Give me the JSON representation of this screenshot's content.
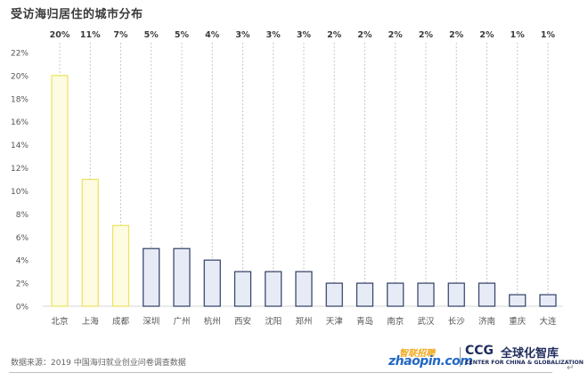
{
  "chart_data": {
    "type": "bar",
    "title": "受访海归居住的城市分布",
    "categories": [
      "北京",
      "上海",
      "成都",
      "深圳",
      "广州",
      "杭州",
      "西安",
      "沈阳",
      "郑州",
      "天津",
      "青岛",
      "南京",
      "武汉",
      "长沙",
      "济南",
      "重庆",
      "大连"
    ],
    "values": [
      20,
      11,
      7,
      5,
      5,
      4,
      3,
      3,
      3,
      2,
      2,
      2,
      2,
      2,
      2,
      1,
      1
    ],
    "value_labels": [
      "20%",
      "11%",
      "7%",
      "5%",
      "5%",
      "4%",
      "3%",
      "3%",
      "3%",
      "2%",
      "2%",
      "2%",
      "2%",
      "2%",
      "2%",
      "1%",
      "1%"
    ],
    "ylim": [
      0,
      22
    ],
    "y_ticks": [
      "0%",
      "2%",
      "4%",
      "6%",
      "8%",
      "10%",
      "12%",
      "14%",
      "16%",
      "18%",
      "20%",
      "22%"
    ],
    "highlight_count": 3,
    "grid": "dotted vertical guide lines above each bar",
    "colors": {
      "highlight_fill": "#fdfbe2",
      "highlight_stroke": "#ece35a",
      "normal_fill": "#e7ebf6",
      "normal_stroke": "#2f3e63",
      "guide": "#c8c8c8",
      "text": "#555555"
    }
  },
  "footer": {
    "source": "数据来源：2019 中国海归就业创业问卷调查数据"
  },
  "logos": {
    "zhaopin_cn": "智联招聘",
    "zhaopin_en": "zhaopin.com",
    "ccg_mark": "CCG",
    "ccg_cn": "全球化智库",
    "ccg_en": "CENTER FOR CHINA & GLOBALIZATION"
  },
  "edit_mark": "↵"
}
